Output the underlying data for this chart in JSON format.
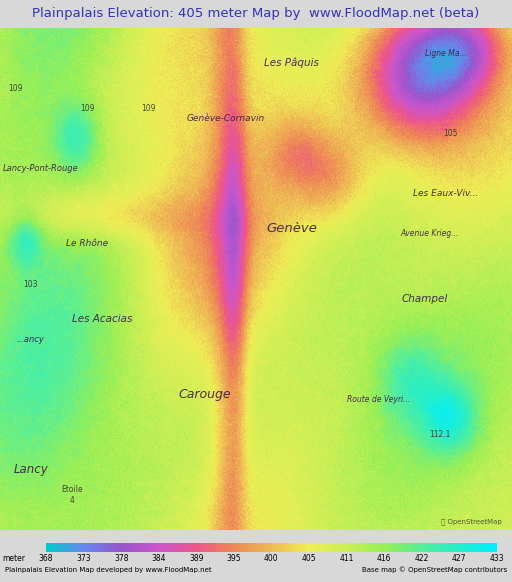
{
  "title": "Plainpalais Elevation: 405 meter Map by  www.FloodMap.net (beta)",
  "title_color": "#3333bb",
  "title_fontsize": 9.5,
  "figsize": [
    5.12,
    5.82
  ],
  "dpi": 100,
  "colorbar_values": [
    368,
    373,
    378,
    384,
    389,
    395,
    400,
    405,
    411,
    416,
    422,
    427,
    433
  ],
  "colorbar_colors": [
    "#00cccc",
    "#6688ee",
    "#9955cc",
    "#cc55cc",
    "#ee5588",
    "#ee8855",
    "#eebb55",
    "#eeee55",
    "#ccee55",
    "#99ee55",
    "#55ee99",
    "#22eecc",
    "#00eeff"
  ],
  "bottom_left_text": "Plainpalais Elevation Map developed by www.FloodMap.net",
  "bottom_right_text": "Base map © OpenStreetMap contributors",
  "bg_color": "#d8d8d8",
  "title_bg": "#d0d0d0"
}
